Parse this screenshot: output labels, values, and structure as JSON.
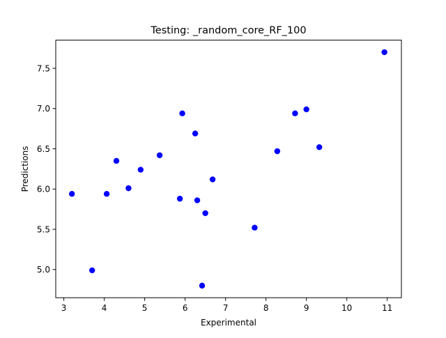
{
  "chart_data": {
    "type": "scatter",
    "title": "Testing: _random_core_RF_100",
    "xlabel": "Experimental",
    "ylabel": "Predictions",
    "xlim": [
      2.8,
      11.35
    ],
    "ylim": [
      4.65,
      7.85
    ],
    "xticks": [
      3,
      4,
      5,
      6,
      7,
      8,
      9,
      10,
      11
    ],
    "xtick_labels": [
      "3",
      "4",
      "5",
      "6",
      "7",
      "8",
      "9",
      "10",
      "11"
    ],
    "yticks": [
      5.0,
      5.5,
      6.0,
      6.5,
      7.0,
      7.5
    ],
    "ytick_labels": [
      "5.0",
      "5.5",
      "6.0",
      "6.5",
      "7.0",
      "7.5"
    ],
    "grid": false,
    "legend": "none",
    "marker_color": "#0000ff",
    "points": [
      {
        "x": 3.2,
        "y": 5.94
      },
      {
        "x": 3.7,
        "y": 4.99
      },
      {
        "x": 4.06,
        "y": 5.94
      },
      {
        "x": 4.3,
        "y": 6.35
      },
      {
        "x": 4.6,
        "y": 6.01
      },
      {
        "x": 4.9,
        "y": 6.24
      },
      {
        "x": 5.37,
        "y": 6.42
      },
      {
        "x": 5.87,
        "y": 5.88
      },
      {
        "x": 5.93,
        "y": 6.94
      },
      {
        "x": 6.25,
        "y": 6.69
      },
      {
        "x": 6.3,
        "y": 5.86
      },
      {
        "x": 6.42,
        "y": 4.8
      },
      {
        "x": 6.5,
        "y": 5.7
      },
      {
        "x": 6.68,
        "y": 6.12
      },
      {
        "x": 7.72,
        "y": 5.52
      },
      {
        "x": 8.28,
        "y": 6.47
      },
      {
        "x": 8.72,
        "y": 6.94
      },
      {
        "x": 9.0,
        "y": 6.99
      },
      {
        "x": 9.32,
        "y": 6.52
      },
      {
        "x": 10.93,
        "y": 7.7
      }
    ]
  }
}
